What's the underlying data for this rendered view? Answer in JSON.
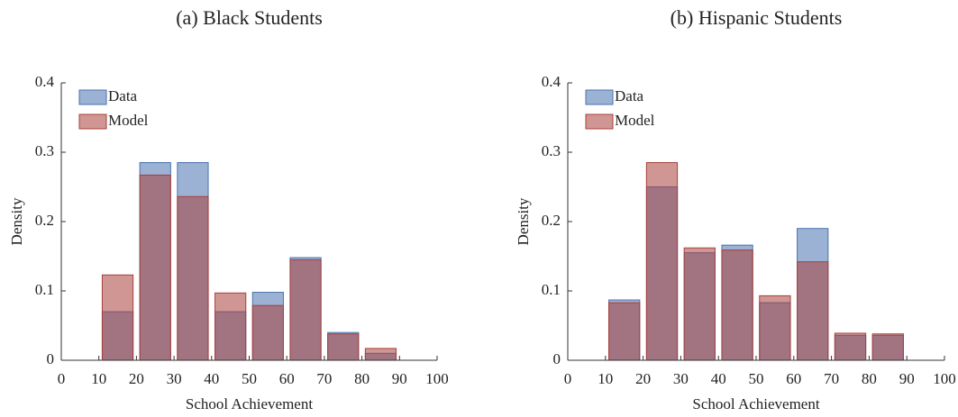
{
  "chart_data": [
    {
      "type": "histogram",
      "title": "(a) Black Students",
      "xlabel": "School Achievement",
      "ylabel": "Density",
      "bins": [
        0,
        10,
        20,
        30,
        40,
        50,
        60,
        70,
        80,
        90,
        100
      ],
      "series": [
        {
          "name": "Data",
          "color": "#4a72b0",
          "values": [
            0,
            0.07,
            0.285,
            0.285,
            0.07,
            0.098,
            0.148,
            0.04,
            0.01,
            0
          ]
        },
        {
          "name": "Model",
          "color": "#a8403a",
          "values": [
            0,
            0.123,
            0.267,
            0.236,
            0.097,
            0.079,
            0.145,
            0.038,
            0.017,
            0
          ]
        }
      ],
      "xlim": [
        0,
        100
      ],
      "xticks": [
        0,
        10,
        20,
        30,
        40,
        50,
        60,
        70,
        80,
        90,
        100
      ],
      "ylim": [
        0,
        0.4
      ],
      "yticks": [
        0,
        0.1,
        0.2,
        0.3,
        0.4
      ],
      "legend": "upper-left"
    },
    {
      "type": "histogram",
      "title": "(b) Hispanic Students",
      "xlabel": "School Achievement",
      "ylabel": "Density",
      "bins": [
        0,
        10,
        20,
        30,
        40,
        50,
        60,
        70,
        80,
        90,
        100
      ],
      "series": [
        {
          "name": "Data",
          "color": "#4a72b0",
          "values": [
            0,
            0.087,
            0.25,
            0.155,
            0.166,
            0.083,
            0.19,
            0.036,
            0.036,
            0
          ]
        },
        {
          "name": "Model",
          "color": "#a8403a",
          "values": [
            0,
            0.083,
            0.285,
            0.162,
            0.159,
            0.093,
            0.142,
            0.039,
            0.038,
            0
          ]
        }
      ],
      "xlim": [
        0,
        100
      ],
      "xticks": [
        0,
        10,
        20,
        30,
        40,
        50,
        60,
        70,
        80,
        90,
        100
      ],
      "ylim": [
        0,
        0.4
      ],
      "yticks": [
        0,
        0.1,
        0.2,
        0.3,
        0.4
      ],
      "legend": "upper-left"
    }
  ]
}
